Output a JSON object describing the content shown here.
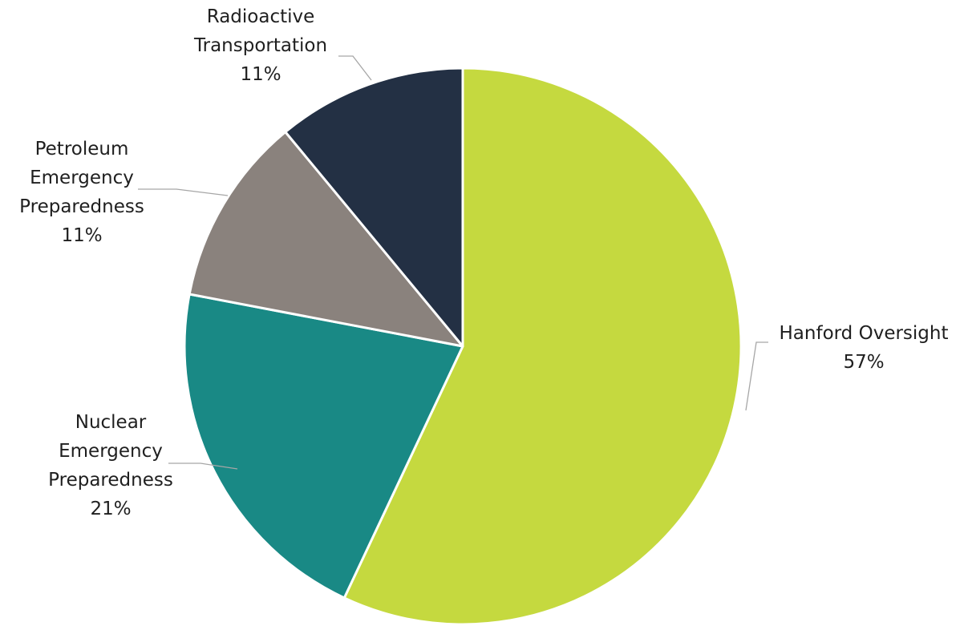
{
  "chart_data": {
    "type": "pie",
    "title": "",
    "slices": [
      {
        "name": "Hanford Oversight",
        "label_lines": [
          "Hanford Oversight"
        ],
        "value": 57,
        "value_label": "57%",
        "color": "#c5d93f"
      },
      {
        "name": "Nuclear Emergency Preparedness",
        "label_lines": [
          "Nuclear",
          "Emergency",
          "Preparedness"
        ],
        "value": 21,
        "value_label": "21%",
        "color": "#198985"
      },
      {
        "name": "Petroleum Emergency Preparedness",
        "label_lines": [
          "Petroleum",
          "Emergency",
          "Preparedness"
        ],
        "value": 11,
        "value_label": "11%",
        "color": "#8a827d"
      },
      {
        "name": "Radioactive Transportation",
        "label_lines": [
          "Radioactive",
          "Transportation"
        ],
        "value": 11,
        "value_label": "11%",
        "color": "#233044"
      }
    ],
    "start_angle": "12 o'clock",
    "direction": "clockwise",
    "legend": "none",
    "data_labels": "outside with leader lines"
  }
}
